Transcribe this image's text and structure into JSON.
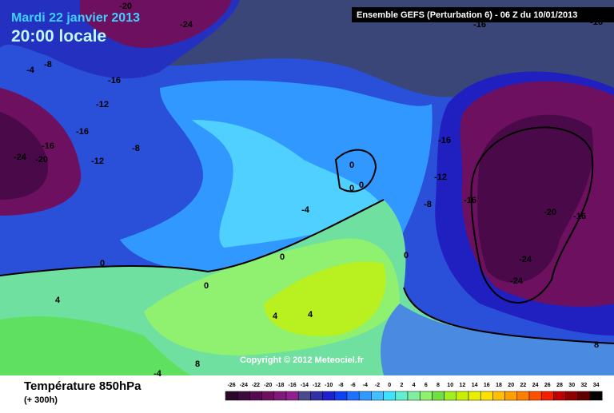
{
  "header": {
    "date": "Mardi 22 janvier 2013",
    "time": "20:00 locale",
    "model": "Ensemble GEFS (Perturbation 6)  -  06 Z du 10/01/2013"
  },
  "copyright": "Copyright © 2012 Meteociel.fr",
  "footer": {
    "title": "Température 850hPa",
    "subtitle": "(+ 300h)"
  },
  "map_labels": [
    "-20",
    "-24",
    "-16",
    "-16",
    "-8",
    "-4",
    "-16",
    "-12",
    "-16",
    "-8",
    "-16",
    "-24",
    "-20",
    "-12",
    "-16",
    "-12",
    "-16",
    "-8",
    "-20",
    "-16",
    "-24",
    "-24",
    "-4",
    "0",
    "0",
    "0",
    "0",
    "0",
    "0",
    "0",
    "4",
    "4",
    "4",
    "8",
    "8",
    "-4"
  ],
  "legend": {
    "labels": [
      -26,
      -24,
      -22,
      -20,
      -18,
      -16,
      -14,
      -12,
      -10,
      -8,
      -6,
      -4,
      -2,
      0,
      2,
      4,
      6,
      8,
      10,
      12,
      14,
      16,
      18,
      20,
      22,
      24,
      26,
      28,
      30,
      32,
      34
    ],
    "colors": [
      "#2a0a2a",
      "#3d0a3d",
      "#560a50",
      "#6e1060",
      "#801a78",
      "#902090",
      "#4a4a8a",
      "#3030a8",
      "#2020d0",
      "#1040f0",
      "#2070ff",
      "#3098ff",
      "#40c0ff",
      "#40e0ff",
      "#60f0d0",
      "#80f0a0",
      "#90f070",
      "#70e040",
      "#a0f020",
      "#c8f000",
      "#e8f000",
      "#ffe000",
      "#ffc000",
      "#ffa000",
      "#ff8000",
      "#ff5000",
      "#f02000",
      "#c00000",
      "#900000",
      "#600000",
      "#000000"
    ]
  }
}
